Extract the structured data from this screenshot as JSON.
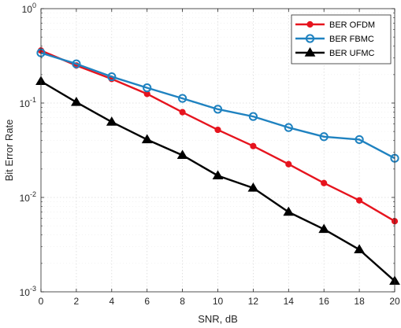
{
  "chart_data": {
    "type": "line",
    "title": "",
    "xlabel": "SNR, dB",
    "ylabel": "Bit Error Rate",
    "yscale": "log",
    "xlim": [
      0,
      20
    ],
    "ylim": [
      0.001,
      1
    ],
    "grid": true,
    "legend_position": "top-right",
    "x": [
      0,
      2,
      4,
      6,
      8,
      10,
      12,
      14,
      16,
      18,
      20
    ],
    "x_ticks": [
      "0",
      "2",
      "4",
      "6",
      "8",
      "10",
      "12",
      "14",
      "16",
      "18",
      "20"
    ],
    "y_ticks": [
      {
        "value": 1,
        "base": "10",
        "exp": "0"
      },
      {
        "value": 0.1,
        "base": "10",
        "exp": "-1"
      },
      {
        "value": 0.01,
        "base": "10",
        "exp": "-2"
      },
      {
        "value": 0.001,
        "base": "10",
        "exp": "-3"
      }
    ],
    "series": [
      {
        "name": "BER OFDM",
        "color": "#e6141e",
        "marker": "filled-circle",
        "values": [
          0.36,
          0.25,
          0.18,
          0.125,
          0.08,
          0.052,
          0.035,
          0.0225,
          0.0142,
          0.0093,
          0.0056
        ]
      },
      {
        "name": "BER FBMC",
        "color": "#1f82c0",
        "marker": "open-circle",
        "values": [
          0.34,
          0.26,
          0.19,
          0.145,
          0.112,
          0.086,
          0.072,
          0.055,
          0.044,
          0.041,
          0.026
        ]
      },
      {
        "name": "BER UFMC",
        "color": "#000000",
        "marker": "filled-triangle",
        "values": [
          0.17,
          0.102,
          0.063,
          0.041,
          0.028,
          0.017,
          0.0126,
          0.007,
          0.0046,
          0.0028,
          0.0013
        ]
      }
    ]
  }
}
